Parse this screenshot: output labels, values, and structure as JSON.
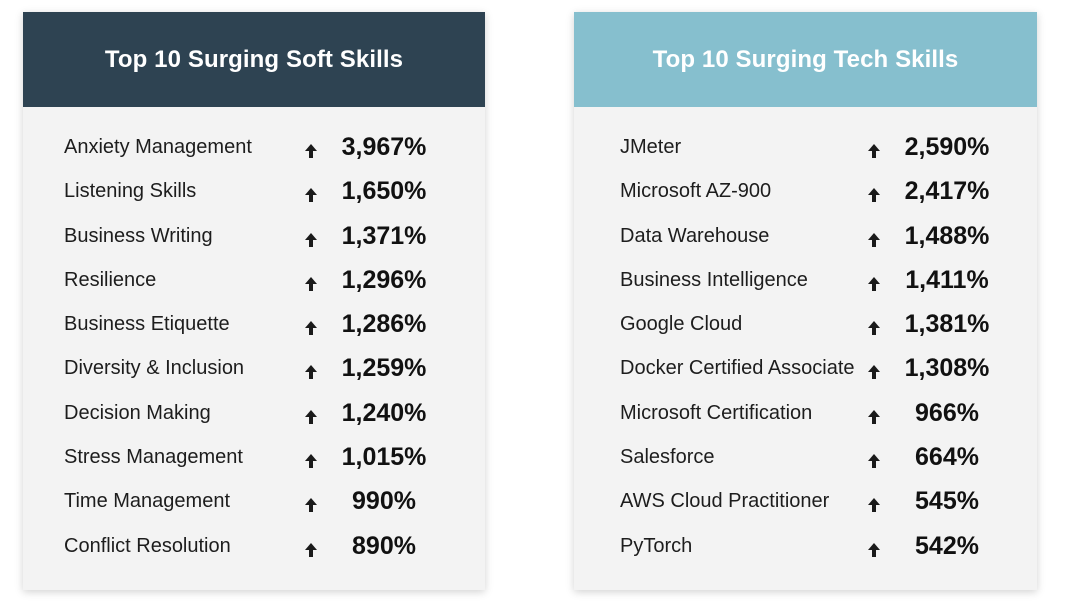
{
  "soft_skills": {
    "title": "Top 10 Surging Soft Skills",
    "header_color": "#2e4352",
    "items": [
      {
        "name": "Anxiety Management",
        "value": "3,967%"
      },
      {
        "name": "Listening Skills",
        "value": "1,650%"
      },
      {
        "name": "Business Writing",
        "value": "1,371%"
      },
      {
        "name": "Resilience",
        "value": "1,296%"
      },
      {
        "name": "Business Etiquette",
        "value": "1,286%"
      },
      {
        "name": "Diversity & Inclusion",
        "value": "1,259%"
      },
      {
        "name": "Decision Making",
        "value": "1,240%"
      },
      {
        "name": "Stress Management",
        "value": "1,015%"
      },
      {
        "name": "Time Management",
        "value": "990%"
      },
      {
        "name": "Conflict Resolution",
        "value": "890%"
      }
    ]
  },
  "tech_skills": {
    "title": "Top 10 Surging Tech Skills",
    "header_color": "#86bfce",
    "items": [
      {
        "name": "JMeter",
        "value": "2,590%"
      },
      {
        "name": "Microsoft AZ-900",
        "value": "2,417%"
      },
      {
        "name": "Data Warehouse",
        "value": "1,488%"
      },
      {
        "name": "Business Intelligence",
        "value": "1,411%"
      },
      {
        "name": "Google Cloud",
        "value": "1,381%"
      },
      {
        "name": "Docker Certified Associate",
        "value": "1,308%"
      },
      {
        "name": "Microsoft Certification",
        "value": "966%"
      },
      {
        "name": "Salesforce",
        "value": "664%"
      },
      {
        "name": "AWS Cloud Practitioner",
        "value": "545%"
      },
      {
        "name": "PyTorch",
        "value": "542%"
      }
    ]
  },
  "icons": {
    "trend": "arrow-up-icon"
  }
}
